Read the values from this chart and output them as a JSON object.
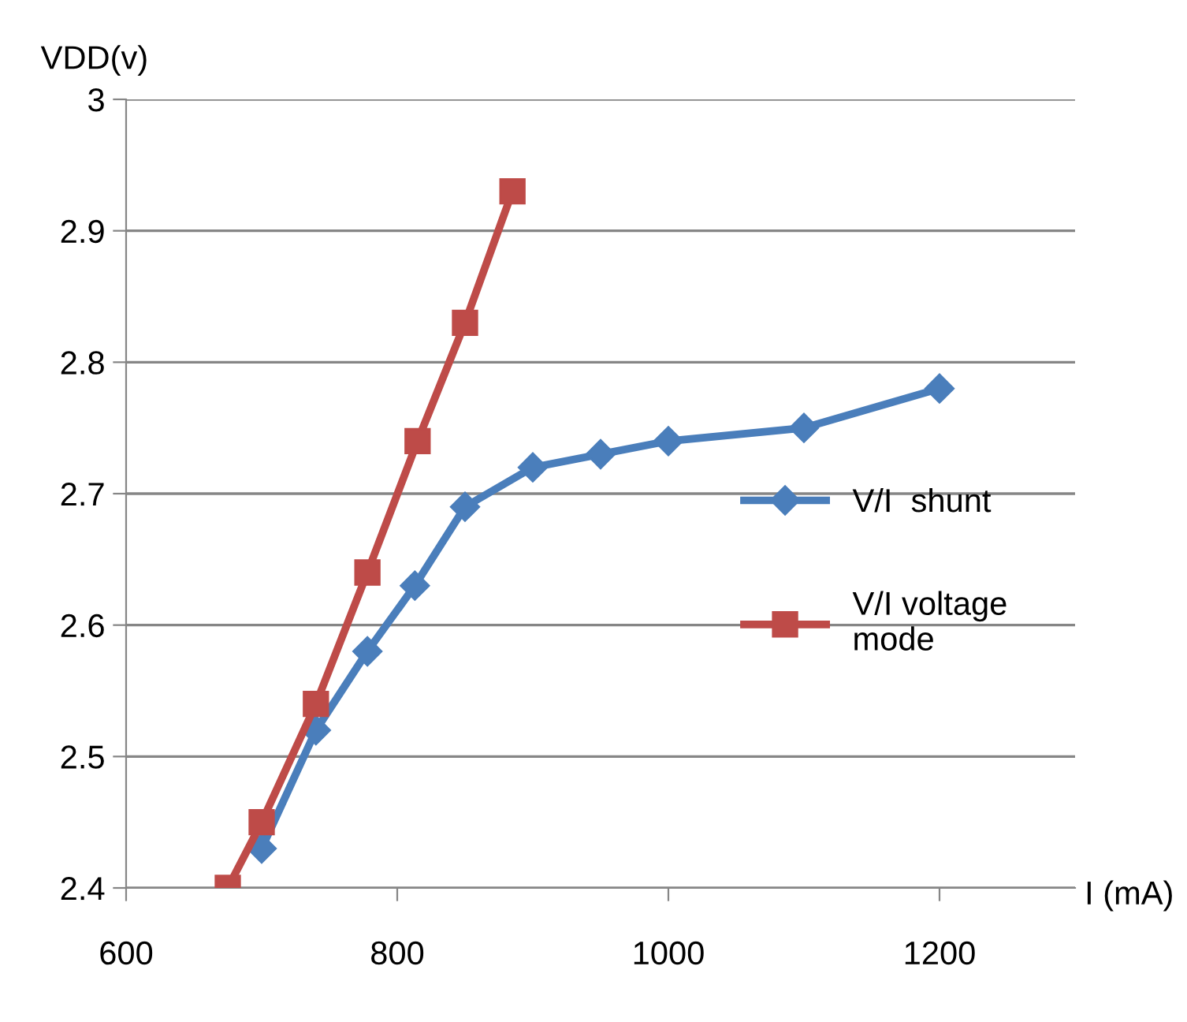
{
  "chart_data": {
    "type": "line",
    "xlabel": "I (mA)",
    "ylabel": "VDD(v)",
    "xlim": [
      600,
      1300
    ],
    "xticks": [
      600,
      800,
      1000,
      1200
    ],
    "ylim": [
      2.4,
      3
    ],
    "yticks": [
      2.4,
      2.5,
      2.6,
      2.7,
      2.8,
      2.9,
      3
    ],
    "grid": "y",
    "legend": "right",
    "line_style": "solid",
    "series": [
      {
        "name": "V/I  shunt",
        "color": "#4a7ebb",
        "marker": "diamond",
        "x": [
          700,
          740,
          778,
          813,
          850,
          900,
          950,
          1000,
          1100,
          1200
        ],
        "values": [
          2.43,
          2.52,
          2.58,
          2.63,
          2.69,
          2.72,
          2.73,
          2.74,
          2.75,
          2.78
        ]
      },
      {
        "name": "V/I voltage\nmode",
        "color": "#be4b48",
        "marker": "square",
        "x": [
          675,
          700,
          740,
          778,
          815,
          850,
          885
        ],
        "values": [
          2.4,
          2.45,
          2.54,
          2.64,
          2.74,
          2.83,
          2.93
        ]
      }
    ]
  }
}
